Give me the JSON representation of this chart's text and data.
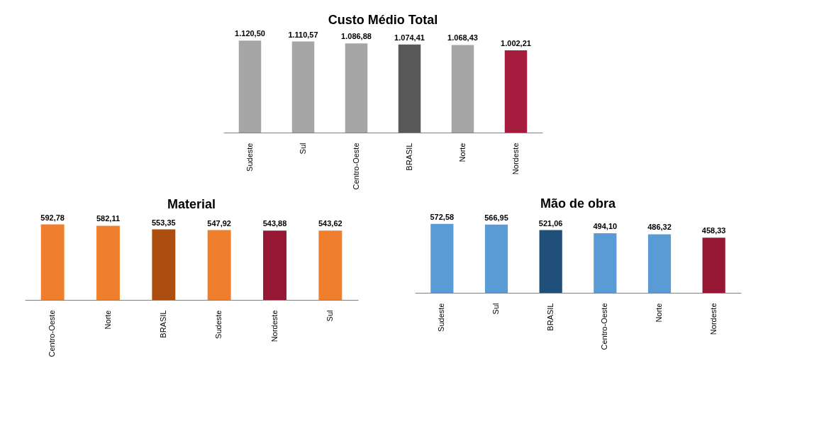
{
  "chart_data": [
    {
      "type": "bar",
      "title": "Custo Médio Total",
      "categories": [
        "Sudeste",
        "Sul",
        "Centro-Oeste",
        "BRASIL",
        "Norte",
        "Nordeste"
      ],
      "values": [
        1120.5,
        1110.57,
        1086.88,
        1074.41,
        1068.43,
        1002.21
      ],
      "colors": [
        "#a6a6a6",
        "#a6a6a6",
        "#a6a6a6",
        "#595959",
        "#a6a6a6",
        "#a51c3e"
      ],
      "value_labels": [
        "1.120,50",
        "1.110,57",
        "1.086,88",
        "1.074,41",
        "1.068,43",
        "1.002,21"
      ]
    },
    {
      "type": "bar",
      "title": "Material",
      "categories": [
        "Centro-Oeste",
        "Norte",
        "BRASIL",
        "Sudeste",
        "Nordeste",
        "Sul"
      ],
      "values": [
        592.78,
        582.11,
        553.35,
        547.92,
        543.88,
        543.62
      ],
      "colors": [
        "#f07f2d",
        "#f07f2d",
        "#ab4e10",
        "#f07f2d",
        "#951734",
        "#f07f2d"
      ],
      "value_labels": [
        "592,78",
        "582,11",
        "553,35",
        "547,92",
        "543,88",
        "543,62"
      ]
    },
    {
      "type": "bar",
      "title": "Mão de obra",
      "categories": [
        "Sudeste",
        "Sul",
        "BRASIL",
        "Centro-Oeste",
        "Norte",
        "Nordeste"
      ],
      "values": [
        572.58,
        566.95,
        521.06,
        494.1,
        486.32,
        458.33
      ],
      "colors": [
        "#5b9bd5",
        "#5b9bd5",
        "#1f4e79",
        "#5b9bd5",
        "#5b9bd5",
        "#951734"
      ],
      "value_labels": [
        "572,58",
        "566,95",
        "521,06",
        "494,10",
        "486,32",
        "458,33"
      ]
    }
  ]
}
